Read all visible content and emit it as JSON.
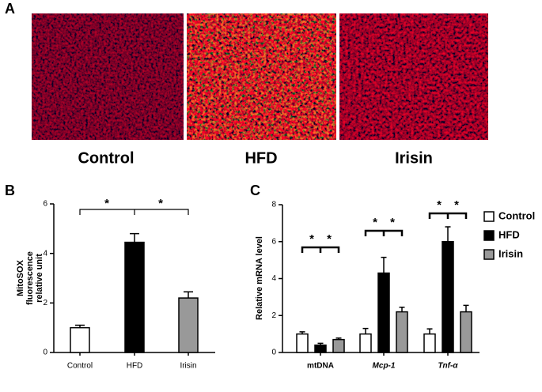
{
  "panel_labels": [
    "A",
    "B",
    "C"
  ],
  "images": {
    "labels": [
      "Control",
      "HFD",
      "Irisin"
    ]
  },
  "chart_data": [
    {
      "type": "bar",
      "ylabel": [
        "MitoSOX",
        "fluorescence",
        "relative unit"
      ],
      "categories": [
        "Control",
        "HFD",
        "Irisin"
      ],
      "values": [
        1.0,
        4.45,
        2.2
      ],
      "errors": [
        0.1,
        0.35,
        0.25
      ],
      "colors": [
        "#ffffff",
        "#000000",
        "#999999"
      ],
      "ylim": [
        0,
        6
      ],
      "yticks": [
        0,
        2,
        4,
        6
      ],
      "annotations": [
        "*",
        "*"
      ]
    },
    {
      "type": "grouped-bar",
      "ylabel": "Relative mRNA level",
      "categories": [
        "mtDNA",
        "Mcp-1",
        "Tnf-α"
      ],
      "series": [
        {
          "name": "Control",
          "color": "#ffffff",
          "values": [
            1.0,
            1.0,
            1.0
          ],
          "errors": [
            0.12,
            0.3,
            0.28
          ]
        },
        {
          "name": "HFD",
          "color": "#000000",
          "values": [
            0.4,
            4.3,
            6.0
          ],
          "errors": [
            0.1,
            0.85,
            0.8
          ]
        },
        {
          "name": "Irisin",
          "color": "#999999",
          "values": [
            0.7,
            2.2,
            2.2
          ],
          "errors": [
            0.08,
            0.25,
            0.35
          ]
        }
      ],
      "ylim": [
        0,
        8
      ],
      "yticks": [
        0,
        2,
        4,
        6,
        8
      ],
      "legend": "right",
      "annotations": [
        "*",
        "*",
        "*",
        "*",
        "*",
        "*"
      ]
    }
  ]
}
